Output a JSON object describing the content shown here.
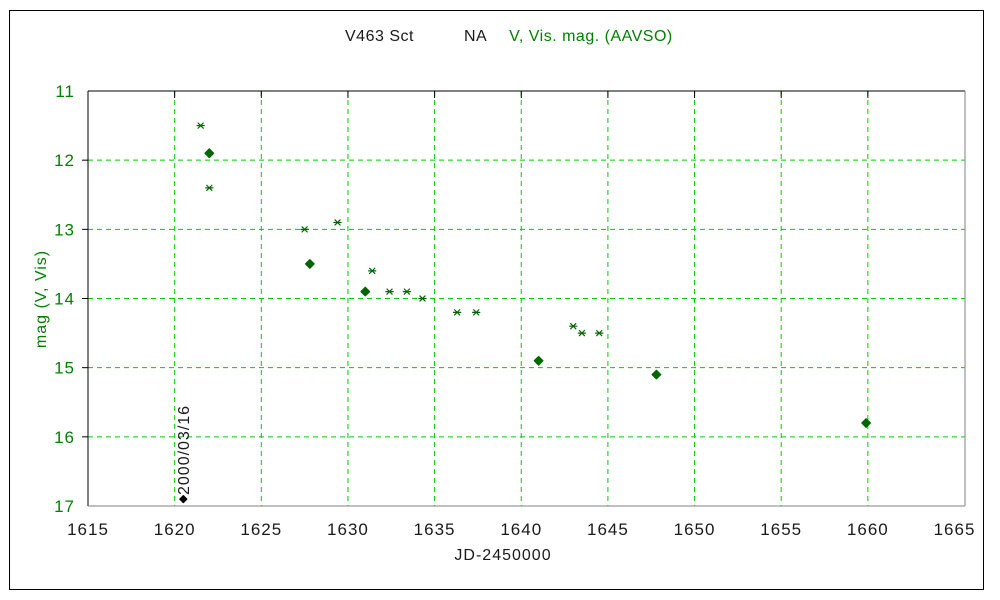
{
  "title": {
    "star": "V463 Sct",
    "type_code": "NA",
    "legend": "V, Vis. mag. (AAVSO)"
  },
  "axes": {
    "x_label": "JD-2450000",
    "y_label": "mag (V, Vis)"
  },
  "colors": {
    "background": "#ffffff",
    "frame_border": "#000000",
    "plot_border_dark": "#000000",
    "plot_border_light": "#808080",
    "grid": "#00cc00",
    "point": "#006600",
    "axis_text_green": "#008000",
    "axis_text_dark": "#1a1a1a",
    "annotation": "#1a1a1a",
    "annotation_marker": "#000000"
  },
  "chart_data": {
    "type": "scatter",
    "title": "V463 Sct  NA  V, Vis. mag. (AAVSO)",
    "xlabel": "JD-2450000",
    "ylabel": "mag (V, Vis)",
    "xlim": [
      1615,
      1665
    ],
    "ylim": [
      17,
      11
    ],
    "y_inverted": true,
    "grid": true,
    "grid_style": "dashed",
    "x_ticks": [
      1615,
      1620,
      1625,
      1630,
      1635,
      1640,
      1645,
      1650,
      1655,
      1660,
      1665
    ],
    "y_ticks": [
      11,
      12,
      13,
      14,
      15,
      16,
      17
    ],
    "series": [
      {
        "name": "V",
        "marker": "diamond",
        "color": "#006600",
        "points": [
          [
            1622.0,
            11.9
          ],
          [
            1627.8,
            13.5
          ],
          [
            1631.0,
            13.9
          ],
          [
            1641.0,
            14.9
          ],
          [
            1647.8,
            15.1
          ],
          [
            1659.9,
            15.8
          ]
        ]
      },
      {
        "name": "Vis",
        "marker": "asterisk",
        "color": "#006600",
        "points": [
          [
            1621.5,
            11.5
          ],
          [
            1622.0,
            12.4
          ],
          [
            1627.5,
            13.0
          ],
          [
            1629.4,
            12.9
          ],
          [
            1631.4,
            13.6
          ],
          [
            1632.4,
            13.9
          ],
          [
            1633.4,
            13.9
          ],
          [
            1634.3,
            14.0
          ],
          [
            1636.3,
            14.2
          ],
          [
            1637.4,
            14.2
          ],
          [
            1643.0,
            14.4
          ],
          [
            1643.5,
            14.5
          ],
          [
            1644.5,
            14.5
          ]
        ]
      }
    ],
    "annotation": {
      "label": "2000/03/16",
      "x": 1620.5,
      "y": 16.9,
      "marker": "dot",
      "rotated": true
    }
  }
}
